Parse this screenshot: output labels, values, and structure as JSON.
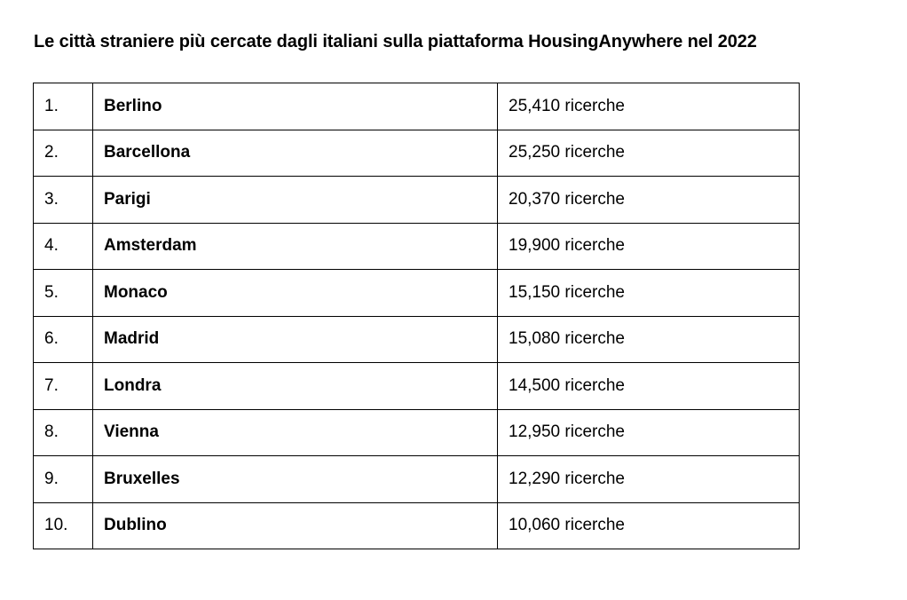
{
  "title": "Le città straniere più cercate dagli italiani sulla piattaforma HousingAnywhere nel 2022",
  "rows": [
    {
      "rank": "1.",
      "city": "Berlino",
      "searches": "25,410 ricerche"
    },
    {
      "rank": "2.",
      "city": "Barcellona",
      "searches": "25,250 ricerche"
    },
    {
      "rank": "3.",
      "city": "Parigi",
      "searches": "20,370 ricerche"
    },
    {
      "rank": "4.",
      "city": "Amsterdam",
      "searches": "19,900 ricerche"
    },
    {
      "rank": "5.",
      "city": "Monaco",
      "searches": "15,150 ricerche"
    },
    {
      "rank": "6.",
      "city": "Madrid",
      "searches": "15,080 ricerche"
    },
    {
      "rank": "7.",
      "city": "Londra",
      "searches": "14,500 ricerche"
    },
    {
      "rank": "8.",
      "city": "Vienna",
      "searches": "12,950 ricerche"
    },
    {
      "rank": "9.",
      "city": "Bruxelles",
      "searches": "12,290 ricerche"
    },
    {
      "rank": "10.",
      "city": "Dublino",
      "searches": "10,060 ricerche"
    }
  ]
}
